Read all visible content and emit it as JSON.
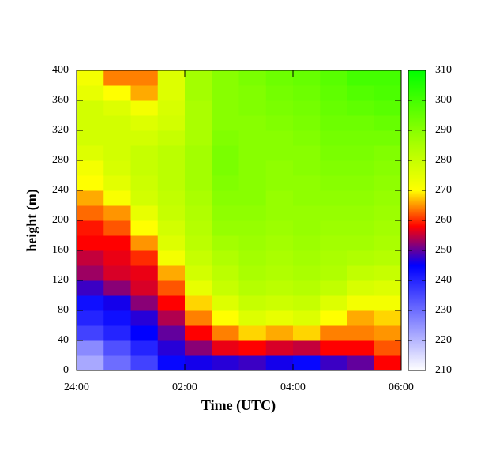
{
  "chart_data": {
    "type": "heatmap",
    "xlabel": "Time (UTC)",
    "ylabel": "height (m)",
    "x": [
      0.25,
      0.75,
      1.25,
      1.75,
      2.25,
      2.75,
      3.25,
      3.75,
      4.25,
      4.75,
      5.25,
      5.75
    ],
    "y": [
      10,
      30,
      50,
      70,
      90,
      110,
      130,
      150,
      170,
      190,
      210,
      230,
      250,
      270,
      290,
      310,
      330,
      350,
      370,
      390
    ],
    "z": [
      [
        222,
        226,
        236,
        240,
        243,
        248,
        253,
        255,
        258,
        259,
        263,
        266,
        270,
        272,
        276,
        278,
        278,
        278,
        274,
        272
      ],
      [
        230,
        234,
        240,
        243,
        246,
        252,
        256,
        257,
        258,
        262,
        265,
        271,
        275,
        277,
        278,
        278,
        278,
        276,
        270,
        264
      ],
      [
        236,
        240,
        245,
        247,
        252,
        256,
        257,
        260,
        265,
        270,
        274,
        278,
        279,
        280,
        280,
        278,
        276,
        272,
        266,
        264
      ],
      [
        244,
        247,
        250,
        254,
        258,
        262,
        266,
        272,
        276,
        278,
        280,
        281,
        282,
        282,
        282,
        280,
        278,
        277,
        276,
        276
      ],
      [
        246,
        252,
        258,
        264,
        268,
        274,
        278,
        280,
        282,
        283,
        284,
        285,
        286,
        286,
        286,
        285,
        285,
        285,
        286,
        286
      ],
      [
        247,
        257,
        264,
        270,
        276,
        280,
        282,
        284,
        286,
        288,
        289,
        290,
        291,
        292,
        292,
        291,
        290,
        290,
        290,
        290
      ],
      [
        248,
        258,
        268,
        276,
        280,
        283,
        285,
        286,
        287,
        288,
        289,
        290,
        290,
        290,
        290,
        290,
        290,
        291,
        291,
        292
      ],
      [
        246,
        256,
        266,
        274,
        279,
        282,
        284,
        285,
        286,
        287,
        288,
        288,
        289,
        289,
        290,
        290,
        291,
        292,
        293,
        294
      ],
      [
        244,
        255,
        268,
        276,
        280,
        283,
        285,
        286,
        287,
        288,
        288,
        289,
        289,
        290,
        290,
        291,
        292,
        293,
        294,
        295
      ],
      [
        248,
        258,
        264,
        270,
        276,
        281,
        284,
        285,
        286,
        287,
        288,
        289,
        290,
        291,
        292,
        293,
        294,
        295,
        296,
        297
      ],
      [
        250,
        258,
        264,
        266,
        272,
        277,
        281,
        284,
        286,
        287,
        288,
        289,
        290,
        291,
        292,
        293,
        294,
        296,
        298,
        300
      ],
      [
        258,
        262,
        265,
        268,
        272,
        276,
        280,
        283,
        285,
        286,
        287,
        288,
        289,
        290,
        291,
        293,
        295,
        297,
        299,
        300
      ]
    ],
    "xlim": [
      0,
      6
    ],
    "xticks": [
      {
        "value": 0,
        "label": "24:00"
      },
      {
        "value": 2,
        "label": "02:00"
      },
      {
        "value": 4,
        "label": "04:00"
      },
      {
        "value": 6,
        "label": "06:00"
      }
    ],
    "ylim": [
      0,
      400
    ],
    "yticks": [
      0,
      40,
      80,
      120,
      160,
      200,
      240,
      280,
      320,
      360,
      400
    ],
    "clim": [
      210,
      310
    ],
    "cticks": [
      210,
      220,
      230,
      240,
      250,
      260,
      270,
      280,
      290,
      300,
      310
    ],
    "colorscale": [
      [
        210,
        "#ffffff"
      ],
      [
        245,
        "#0000ff"
      ],
      [
        258,
        "#ff0000"
      ],
      [
        270,
        "#ffff00"
      ],
      [
        285,
        "#aaff00"
      ],
      [
        310,
        "#00ff00"
      ]
    ]
  }
}
